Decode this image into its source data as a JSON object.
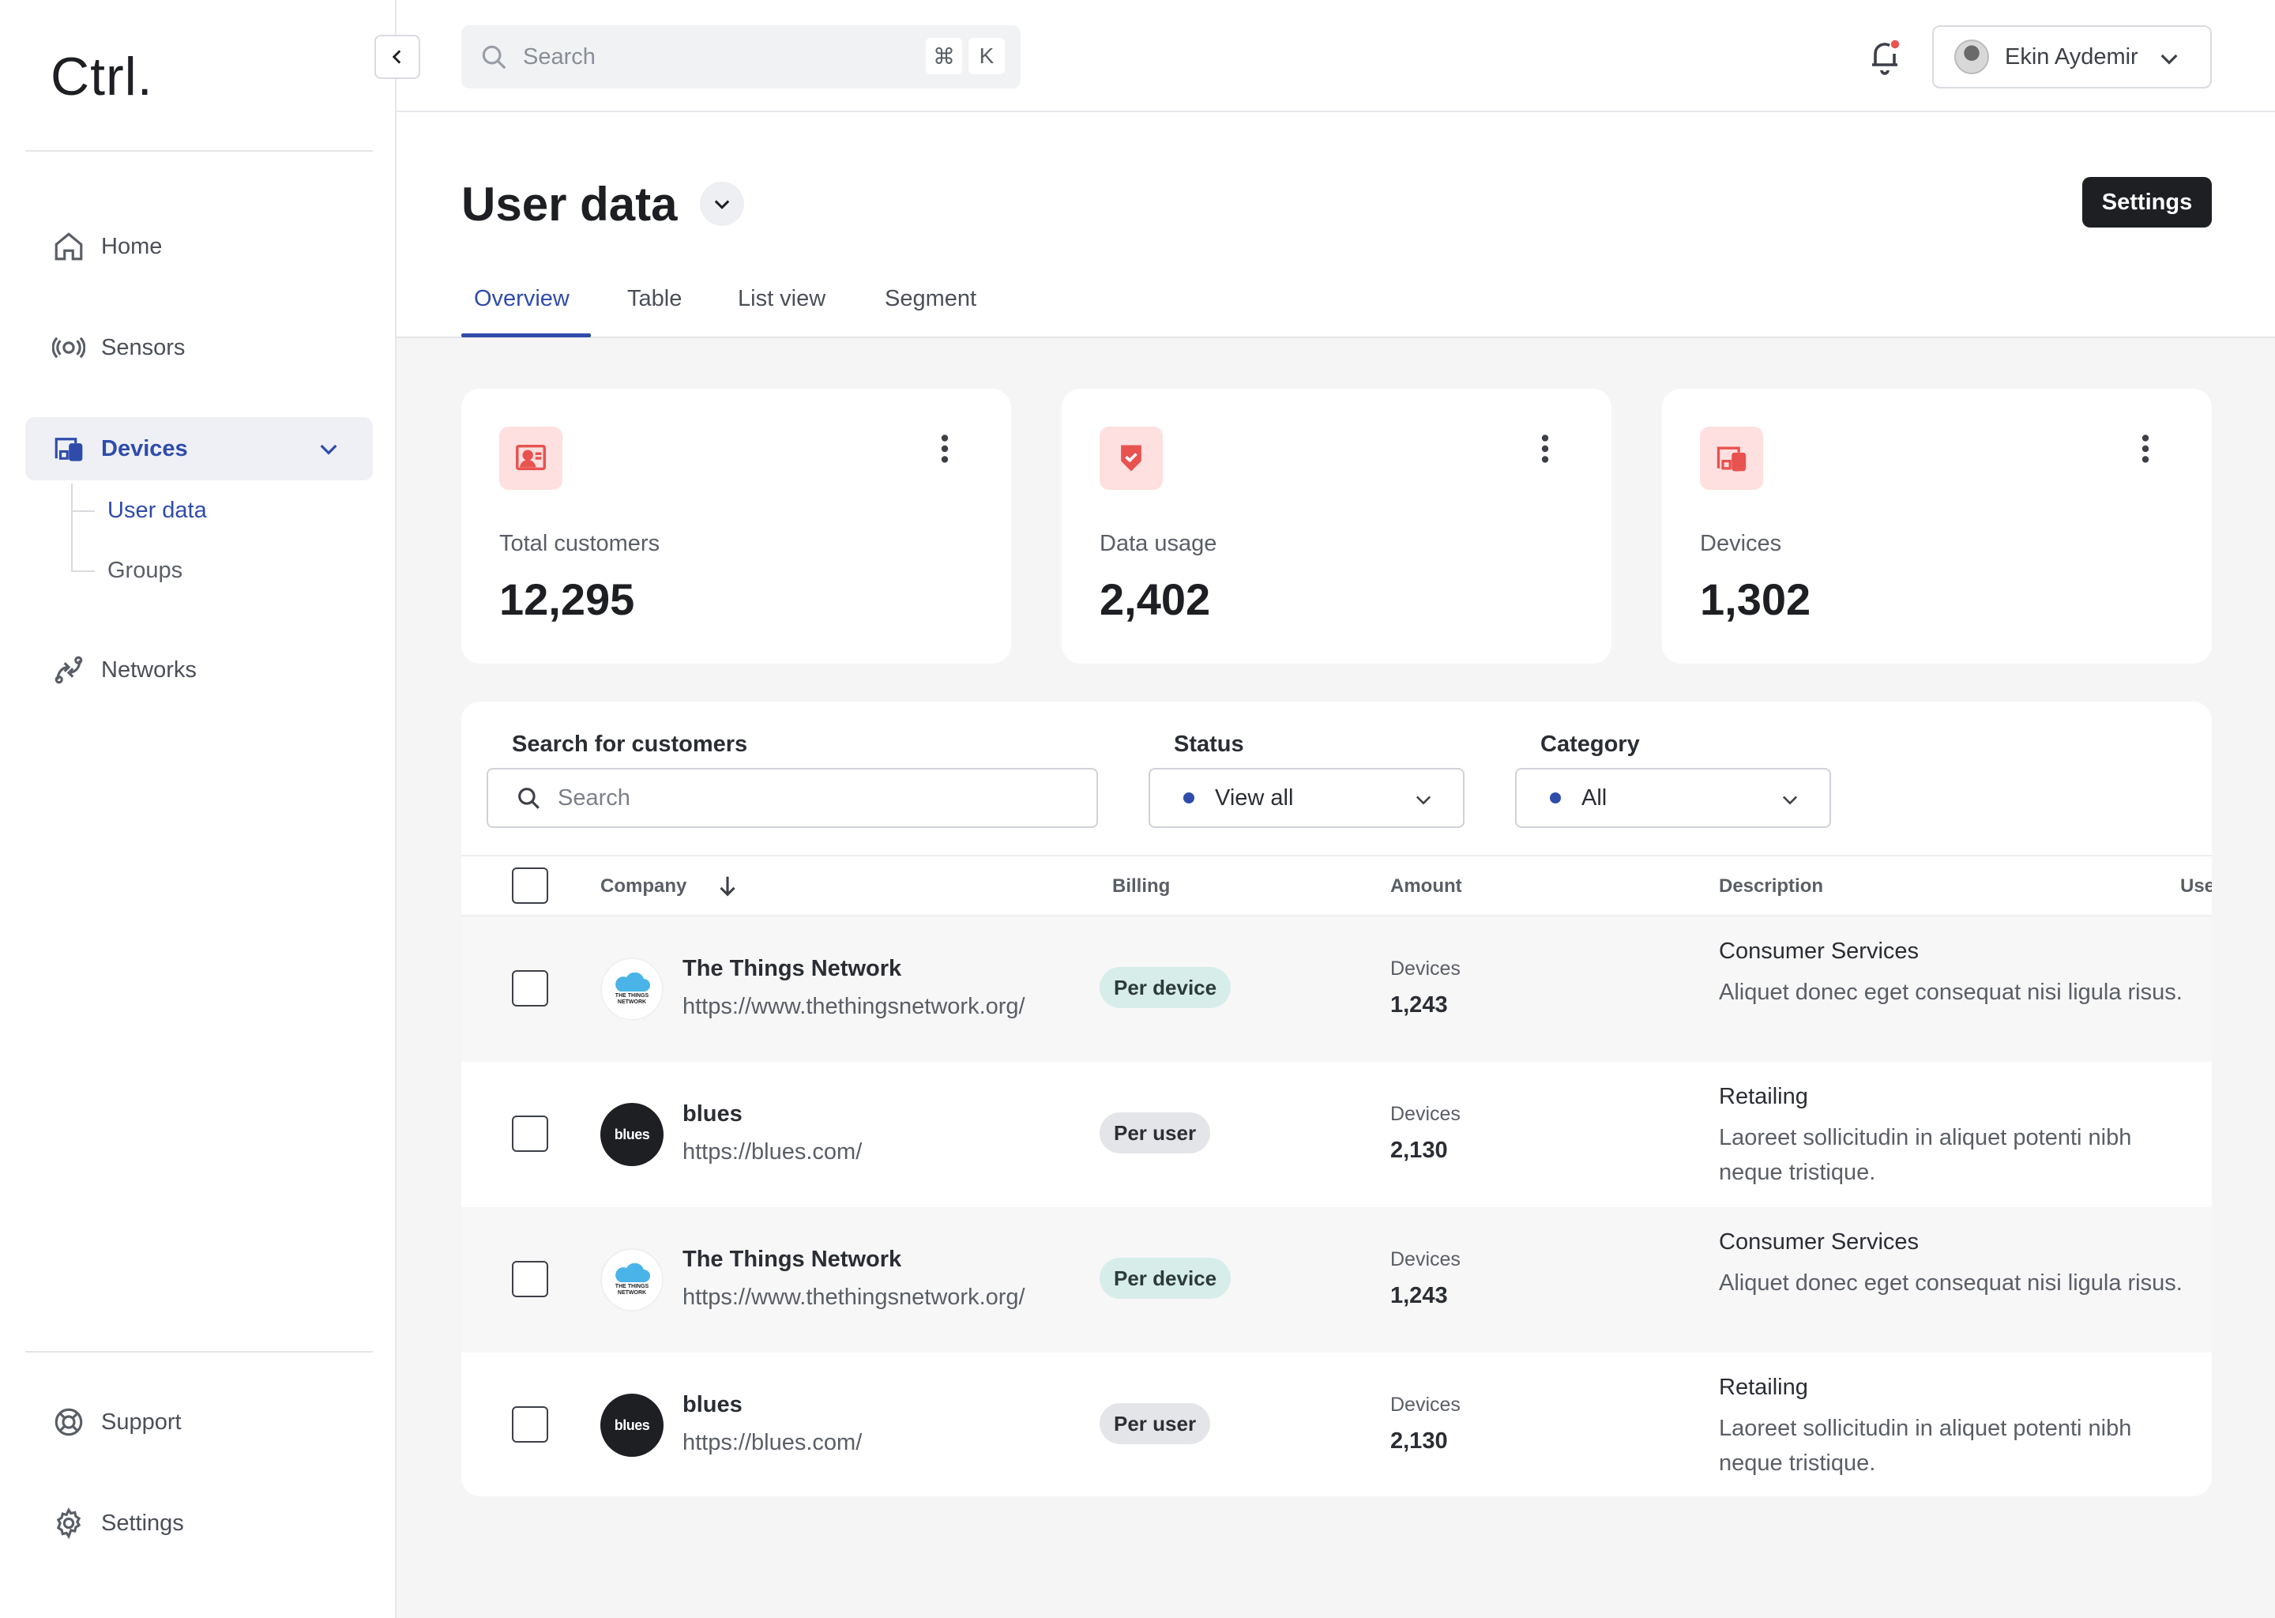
{
  "app": {
    "logo": "Ctrl."
  },
  "sidebar": {
    "items": [
      {
        "label": "Home",
        "icon": "home-icon"
      },
      {
        "label": "Sensors",
        "icon": "sensor-icon"
      },
      {
        "label": "Devices",
        "icon": "devices-icon",
        "active": true,
        "children": [
          {
            "label": "User data",
            "active": true
          },
          {
            "label": "Groups"
          }
        ]
      },
      {
        "label": "Networks",
        "icon": "network-icon"
      }
    ],
    "footer": [
      {
        "label": "Support",
        "icon": "lifebuoy-icon"
      },
      {
        "label": "Settings",
        "icon": "gear-icon"
      }
    ]
  },
  "topbar": {
    "search_placeholder": "Search",
    "shortcut_mod": "⌘",
    "shortcut_key": "K",
    "user_name": "Ekin Aydemir"
  },
  "header": {
    "title": "User data",
    "settings_label": "Settings",
    "tabs": [
      {
        "label": "Overview",
        "active": true
      },
      {
        "label": "Table"
      },
      {
        "label": "List view"
      },
      {
        "label": "Segment"
      }
    ]
  },
  "stats": [
    {
      "label": "Total customers",
      "value": "12,295",
      "icon": "customer-icon"
    },
    {
      "label": "Data usage",
      "value": "2,402",
      "icon": "shield-check-icon"
    },
    {
      "label": "Devices",
      "value": "1,302",
      "icon": "devices-icon"
    }
  ],
  "filters": {
    "search_label": "Search for customers",
    "search_placeholder": "Search",
    "status_label": "Status",
    "status_value": "View all",
    "category_label": "Category",
    "category_value": "All"
  },
  "table": {
    "columns": {
      "company": "Company",
      "billing": "Billing",
      "amount": "Amount",
      "description": "Description",
      "users": "Use"
    },
    "rows": [
      {
        "name": "The Things Network",
        "url": "https://www.thethingsnetwork.org/",
        "billing": "Per device",
        "amount_label": "Devices",
        "amount": "1,243",
        "desc_title": "Consumer Services",
        "desc": "Aliquet donec eget consequat nisi ligula risus."
      },
      {
        "name": "blues",
        "url": "https://blues.com/",
        "billing": "Per user",
        "amount_label": "Devices",
        "amount": "2,130",
        "desc_title": "Retailing",
        "desc": "Laoreet sollicitudin in aliquet potenti nibh neque tristique."
      },
      {
        "name": "The Things Network",
        "url": "https://www.thethingsnetwork.org/",
        "billing": "Per device",
        "amount_label": "Devices",
        "amount": "1,243",
        "desc_title": "Consumer Services",
        "desc": "Aliquet donec eget consequat nisi ligula risus."
      },
      {
        "name": "blues",
        "url": "https://blues.com/",
        "billing": "Per user",
        "amount_label": "Devices",
        "amount": "2,130",
        "desc_title": "Retailing",
        "desc": "Laoreet sollicitudin in aliquet potenti nibh neque tristique."
      }
    ],
    "logos": {
      "ttn": "THE THINGS NETWORK",
      "blues": "blues"
    }
  },
  "colors": {
    "accent": "#2f4cab",
    "icon_bg": "#fde0df",
    "icon_fg": "#e8524f",
    "dark": "#1d1f23"
  }
}
